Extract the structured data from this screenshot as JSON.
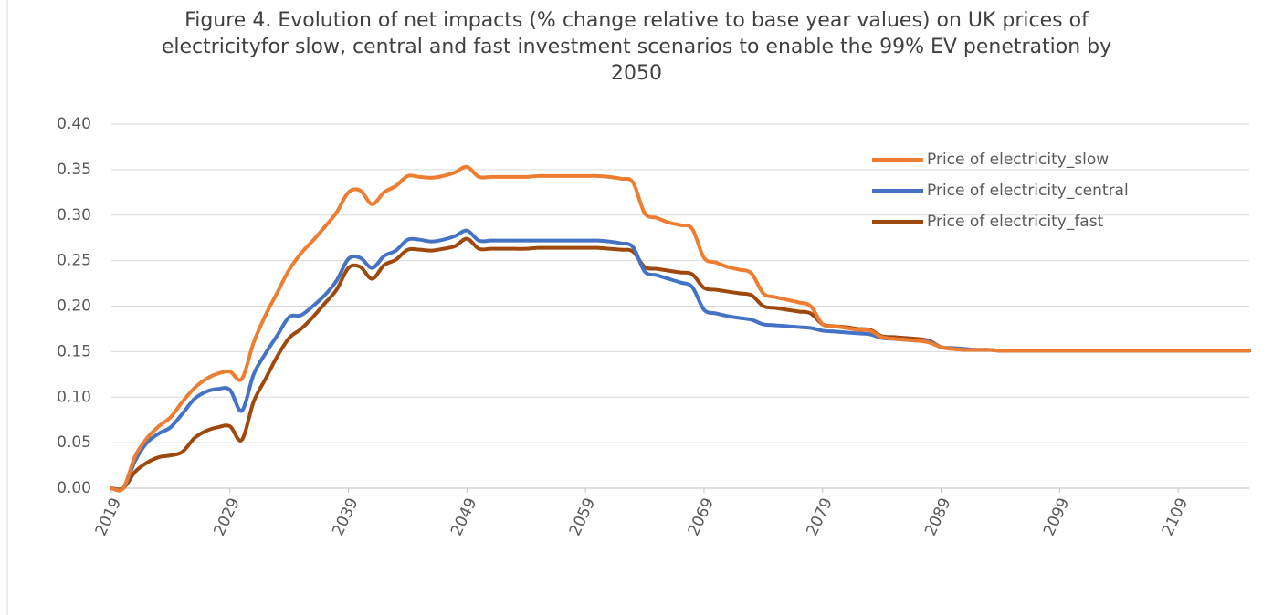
{
  "chart_data": {
    "type": "line",
    "title": "Figure 4. Evolution of net impacts (% change relative to base year values) on UK prices of electricityfor slow, central and fast investment scenarios to enable the 99% EV penetration by 2050",
    "x": [
      2019,
      2020,
      2021,
      2022,
      2023,
      2024,
      2025,
      2026,
      2027,
      2028,
      2029,
      2030,
      2031,
      2032,
      2033,
      2034,
      2035,
      2036,
      2037,
      2038,
      2039,
      2040,
      2041,
      2042,
      2043,
      2044,
      2045,
      2046,
      2047,
      2048,
      2049,
      2050,
      2051,
      2052,
      2053,
      2054,
      2055,
      2056,
      2057,
      2058,
      2059,
      2060,
      2061,
      2062,
      2063,
      2064,
      2065,
      2066,
      2067,
      2068,
      2069,
      2070,
      2071,
      2072,
      2073,
      2074,
      2075,
      2076,
      2077,
      2078,
      2079,
      2080,
      2081,
      2082,
      2083,
      2084,
      2085,
      2086,
      2087,
      2088,
      2089,
      2090,
      2091,
      2092,
      2093,
      2094,
      2095,
      2096,
      2097,
      2098,
      2099,
      2100,
      2101,
      2102,
      2103,
      2104,
      2105,
      2106,
      2107,
      2108,
      2109,
      2110,
      2111,
      2112,
      2113,
      2114,
      2115
    ],
    "series": [
      {
        "name": "Price of electricity_slow",
        "color": "#ed7d31",
        "values": [
          0,
          0,
          0.035,
          0.055,
          0.068,
          0.078,
          0.095,
          0.11,
          0.12,
          0.126,
          0.128,
          0.12,
          0.16,
          0.19,
          0.215,
          0.24,
          0.258,
          0.272,
          0.287,
          0.303,
          0.325,
          0.327,
          0.312,
          0.325,
          0.332,
          0.343,
          0.342,
          0.341,
          0.343,
          0.347,
          0.353,
          0.342,
          0.342,
          0.342,
          0.342,
          0.342,
          0.343,
          0.343,
          0.343,
          0.343,
          0.343,
          0.343,
          0.342,
          0.34,
          0.336,
          0.302,
          0.297,
          0.292,
          0.289,
          0.285,
          0.253,
          0.248,
          0.243,
          0.24,
          0.236,
          0.214,
          0.21,
          0.207,
          0.204,
          0.2,
          0.18,
          0.178,
          0.176,
          0.174,
          0.173,
          0.166,
          0.164,
          0.163,
          0.162,
          0.16,
          0.155,
          0.153,
          0.152,
          0.152,
          0.152,
          0.151,
          0.151,
          0.151,
          0.151,
          0.151,
          0.151,
          0.151,
          0.151,
          0.151,
          0.151,
          0.151,
          0.151,
          0.151,
          0.151,
          0.151,
          0.151,
          0.151,
          0.151,
          0.151,
          0.151,
          0.151,
          0.151
        ]
      },
      {
        "name": "Price of electricity_central",
        "color": "#4472c4",
        "values": [
          0,
          0,
          0.03,
          0.05,
          0.06,
          0.067,
          0.082,
          0.098,
          0.106,
          0.109,
          0.108,
          0.085,
          0.125,
          0.148,
          0.168,
          0.188,
          0.19,
          0.2,
          0.212,
          0.228,
          0.252,
          0.253,
          0.242,
          0.255,
          0.261,
          0.273,
          0.273,
          0.271,
          0.273,
          0.277,
          0.283,
          0.272,
          0.272,
          0.272,
          0.272,
          0.272,
          0.272,
          0.272,
          0.272,
          0.272,
          0.272,
          0.272,
          0.271,
          0.269,
          0.265,
          0.238,
          0.234,
          0.23,
          0.226,
          0.221,
          0.196,
          0.192,
          0.189,
          0.187,
          0.185,
          0.18,
          0.179,
          0.178,
          0.177,
          0.176,
          0.173,
          0.172,
          0.171,
          0.17,
          0.169,
          0.165,
          0.164,
          0.163,
          0.162,
          0.161,
          0.155,
          0.154,
          0.153,
          0.152,
          0.152,
          0.151,
          0.151,
          0.151,
          0.151,
          0.151,
          0.151,
          0.151,
          0.151,
          0.151,
          0.151,
          0.151,
          0.151,
          0.151,
          0.151,
          0.151,
          0.151,
          0.151,
          0.151,
          0.151,
          0.151,
          0.151,
          0.151
        ]
      },
      {
        "name": "Price of electricity_fast",
        "color": "#9e480e",
        "values": [
          0,
          0,
          0.018,
          0.028,
          0.034,
          0.036,
          0.04,
          0.055,
          0.063,
          0.067,
          0.068,
          0.053,
          0.095,
          0.12,
          0.145,
          0.165,
          0.175,
          0.188,
          0.203,
          0.218,
          0.242,
          0.243,
          0.23,
          0.245,
          0.251,
          0.262,
          0.262,
          0.261,
          0.263,
          0.266,
          0.274,
          0.263,
          0.263,
          0.263,
          0.263,
          0.263,
          0.264,
          0.264,
          0.264,
          0.264,
          0.264,
          0.264,
          0.263,
          0.262,
          0.26,
          0.243,
          0.241,
          0.239,
          0.237,
          0.235,
          0.22,
          0.218,
          0.216,
          0.214,
          0.212,
          0.2,
          0.198,
          0.196,
          0.194,
          0.192,
          0.18,
          0.178,
          0.177,
          0.175,
          0.174,
          0.167,
          0.166,
          0.165,
          0.164,
          0.162,
          0.155,
          0.153,
          0.152,
          0.152,
          0.152,
          0.151,
          0.151,
          0.151,
          0.151,
          0.151,
          0.151,
          0.151,
          0.151,
          0.151,
          0.151,
          0.151,
          0.151,
          0.151,
          0.151,
          0.151,
          0.151,
          0.151,
          0.151,
          0.151,
          0.151,
          0.151,
          0.151
        ]
      }
    ],
    "xlim": [
      2019,
      2115
    ],
    "xticks": [
      2019,
      2029,
      2039,
      2049,
      2059,
      2069,
      2079,
      2089,
      2099,
      2109
    ],
    "ylim": [
      0,
      0.4
    ],
    "yticks": [
      {
        "value": 0,
        "label": "0.00"
      },
      {
        "value": 0.05,
        "label": "0.05"
      },
      {
        "value": 0.1,
        "label": "0.10"
      },
      {
        "value": 0.15,
        "label": "0.15"
      },
      {
        "value": 0.2,
        "label": "0.20"
      },
      {
        "value": 0.25,
        "label": "0.25"
      },
      {
        "value": 0.3,
        "label": "0.30"
      },
      {
        "value": 0.35,
        "label": "0.35"
      },
      {
        "value": 0.4,
        "label": "0.40"
      }
    ],
    "grid": true,
    "legend": "upper right"
  }
}
